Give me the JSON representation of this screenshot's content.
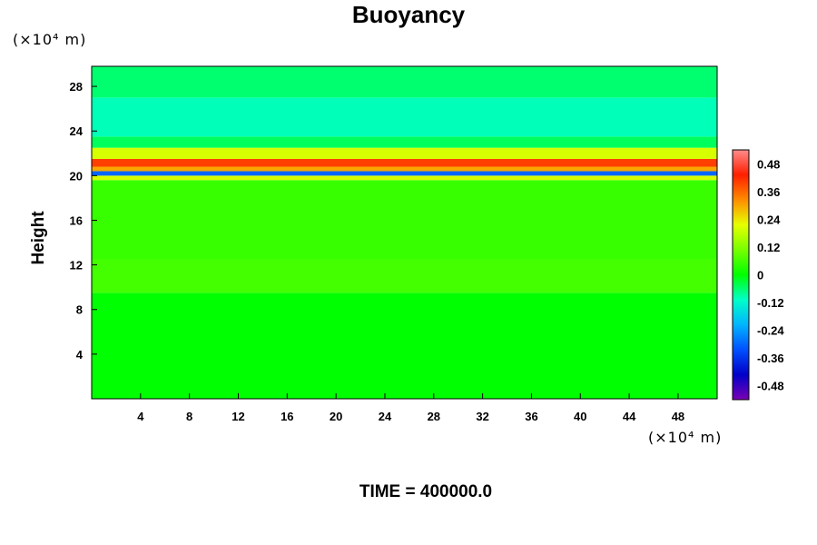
{
  "chart_data": {
    "type": "heatmap",
    "title": "Buoyancy",
    "ylabel": "Height",
    "y_unit_label": "(×10⁴ m)",
    "x_unit_label": "(×10⁴ m)",
    "xlim": [
      0,
      51.2
    ],
    "ylim": [
      0,
      29.8
    ],
    "x_ticks": [
      4,
      8,
      12,
      16,
      20,
      24,
      28,
      32,
      36,
      40,
      44,
      48
    ],
    "y_ticks": [
      4,
      8,
      12,
      16,
      20,
      24,
      28
    ],
    "colorbar": {
      "range": [
        -0.54,
        0.54
      ],
      "labels": [
        0.48,
        0.36,
        0.24,
        0.12,
        0,
        -0.12,
        -0.24,
        -0.36,
        -0.48
      ],
      "label_text": [
        "0.48",
        "0.36",
        "0.24",
        "0.12",
        "0",
        "-0.12",
        "-0.24",
        "-0.36",
        "-0.48"
      ]
    },
    "field_bands": [
      {
        "y_range": [
          0,
          9.5
        ],
        "value": 0.0
      },
      {
        "y_range": [
          9.5,
          12.5
        ],
        "value": 0.06
      },
      {
        "y_range": [
          12.5,
          19.6
        ],
        "value": 0.05
      },
      {
        "y_range": [
          19.6,
          20.0
        ],
        "value": 0.2
      },
      {
        "y_range": [
          20.0,
          20.4
        ],
        "value": -0.3
      },
      {
        "y_range": [
          20.4,
          20.8
        ],
        "value": 0.3
      },
      {
        "y_range": [
          20.8,
          21.5
        ],
        "value": 0.4
      },
      {
        "y_range": [
          21.5,
          22.5
        ],
        "value": 0.2
      },
      {
        "y_range": [
          22.5,
          23.5
        ],
        "value": -0.05
      },
      {
        "y_range": [
          23.5,
          27.0
        ],
        "value": -0.1
      },
      {
        "y_range": [
          27.0,
          29.8
        ],
        "value": -0.06
      }
    ],
    "annotations": [
      "TIME = 400000.0"
    ]
  }
}
